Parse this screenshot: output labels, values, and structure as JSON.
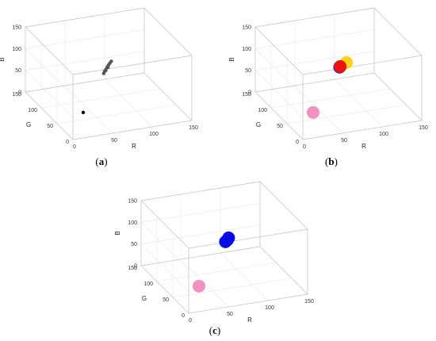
{
  "chart_data": [
    {
      "type": "scatter",
      "panel_label": "(a)",
      "xlabel": "R",
      "ylabel": "G",
      "zlabel": "B",
      "xlim": [
        0,
        150
      ],
      "ylim": [
        0,
        150
      ],
      "zlim": [
        0,
        150
      ],
      "xticks": [
        "0",
        "50",
        "100",
        "150"
      ],
      "yticks": [
        "0",
        "50",
        "100",
        "150"
      ],
      "zticks": [
        "0",
        "50",
        "100",
        "150"
      ],
      "grid": true,
      "series": [
        {
          "color": "#555555",
          "marker_size": "small",
          "points": [
            {
              "R": 70,
              "G": 78,
              "B": 75
            },
            {
              "R": 72,
              "G": 80,
              "B": 78
            },
            {
              "R": 74,
              "G": 81,
              "B": 81
            },
            {
              "R": 76,
              "G": 82,
              "B": 85
            },
            {
              "R": 78,
              "G": 83,
              "B": 88
            },
            {
              "R": 80,
              "G": 84,
              "B": 91
            },
            {
              "R": 82,
              "G": 84,
              "B": 95
            },
            {
              "R": 73,
              "G": 79,
              "B": 80
            },
            {
              "R": 77,
              "G": 82,
              "B": 84
            }
          ]
        },
        {
          "color": "#000000",
          "marker_size": "small",
          "points": [
            {
              "R": 35,
              "G": 55,
              "B": 12
            }
          ]
        }
      ]
    },
    {
      "type": "scatter",
      "panel_label": "(b)",
      "xlabel": "R",
      "ylabel": "G",
      "zlabel": "B",
      "xlim": [
        0,
        150
      ],
      "ylim": [
        0,
        150
      ],
      "zlim": [
        0,
        150
      ],
      "xticks": [
        "0",
        "50",
        "100",
        "150"
      ],
      "yticks": [
        "0",
        "50",
        "100",
        "150"
      ],
      "zticks": [
        "0",
        "50",
        "100",
        "150"
      ],
      "grid": true,
      "series": [
        {
          "color": "#ffd21a",
          "marker_size": "large",
          "points": [
            {
              "R": 88,
              "G": 82,
              "B": 92
            }
          ]
        },
        {
          "color": "#1f1fe0",
          "marker_size": "large",
          "points": [
            {
              "R": 80,
              "G": 84,
              "B": 82
            }
          ]
        },
        {
          "color": "#ee1111",
          "marker_size": "large",
          "points": [
            {
              "R": 80,
              "G": 82,
              "B": 85
            }
          ]
        },
        {
          "color": "#f291c0",
          "marker_size": "large",
          "points": [
            {
              "R": 35,
              "G": 55,
              "B": 12
            }
          ]
        }
      ]
    },
    {
      "type": "scatter",
      "panel_label": "(c)",
      "xlabel": "R",
      "ylabel": "G",
      "zlabel": "B",
      "xlim": [
        0,
        150
      ],
      "ylim": [
        0,
        150
      ],
      "zlim": [
        0,
        150
      ],
      "xticks": [
        "0",
        "50",
        "100",
        "150"
      ],
      "yticks": [
        "0",
        "50",
        "100",
        "150"
      ],
      "zticks": [
        "0",
        "50",
        "100",
        "150"
      ],
      "grid": true,
      "series": [
        {
          "color": "#0a0ae6",
          "marker_size": "large",
          "points": [
            {
              "R": 84,
              "G": 84,
              "B": 88
            },
            {
              "R": 80,
              "G": 84,
              "B": 80
            },
            {
              "R": 82,
              "G": 83,
              "B": 84
            }
          ]
        },
        {
          "color": "#f291c0",
          "marker_size": "large",
          "points": [
            {
              "R": 35,
              "G": 55,
              "B": 12
            }
          ]
        }
      ]
    }
  ]
}
